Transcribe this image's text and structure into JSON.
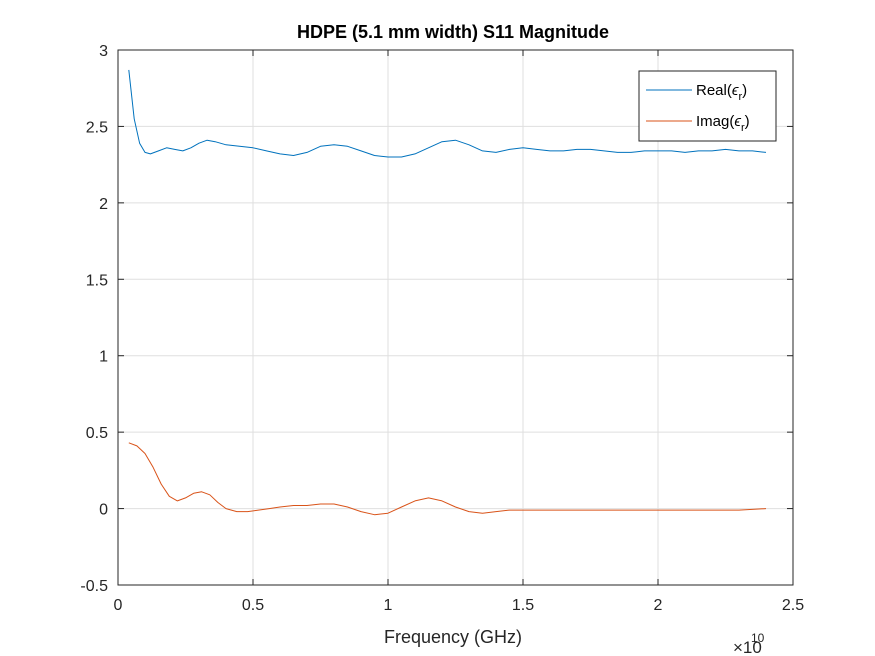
{
  "chart_data": {
    "type": "line",
    "title": "HDPE (5.1 mm width) S11 Magnitude",
    "xlabel": "Frequency (GHz)",
    "ylabel": "",
    "xlim": [
      0,
      2.5
    ],
    "ylim": [
      -0.5,
      3
    ],
    "x_exponent": {
      "base": "×10",
      "power": "10"
    },
    "xticks": [
      0,
      0.5,
      1,
      1.5,
      2,
      2.5
    ],
    "xtick_labels": [
      "0",
      "0.5",
      "1",
      "1.5",
      "2",
      "2.5"
    ],
    "yticks": [
      -0.5,
      0,
      0.5,
      1,
      1.5,
      2,
      2.5,
      3
    ],
    "ytick_labels": [
      "-0.5",
      "0",
      "0.5",
      "1",
      "1.5",
      "2",
      "2.5",
      "3"
    ],
    "grid": true,
    "legend_position": "top-right",
    "series": [
      {
        "name": "Real(ϵr)",
        "label_main": "Real(",
        "label_symbol": "ϵ",
        "label_sub": "r",
        "label_close": ")",
        "color": "#0072BD",
        "x": [
          0.04,
          0.06,
          0.08,
          0.1,
          0.12,
          0.15,
          0.18,
          0.21,
          0.24,
          0.27,
          0.3,
          0.33,
          0.36,
          0.4,
          0.45,
          0.5,
          0.55,
          0.6,
          0.65,
          0.7,
          0.75,
          0.8,
          0.85,
          0.9,
          0.95,
          1.0,
          1.05,
          1.1,
          1.15,
          1.2,
          1.25,
          1.3,
          1.35,
          1.4,
          1.45,
          1.5,
          1.55,
          1.6,
          1.65,
          1.7,
          1.75,
          1.8,
          1.85,
          1.9,
          1.95,
          2.0,
          2.05,
          2.1,
          2.15,
          2.2,
          2.25,
          2.3,
          2.35,
          2.4
        ],
        "y": [
          2.87,
          2.55,
          2.39,
          2.33,
          2.32,
          2.34,
          2.36,
          2.35,
          2.34,
          2.36,
          2.39,
          2.41,
          2.4,
          2.38,
          2.37,
          2.36,
          2.34,
          2.32,
          2.31,
          2.33,
          2.37,
          2.38,
          2.37,
          2.34,
          2.31,
          2.3,
          2.3,
          2.32,
          2.36,
          2.4,
          2.41,
          2.38,
          2.34,
          2.33,
          2.35,
          2.36,
          2.35,
          2.34,
          2.34,
          2.35,
          2.35,
          2.34,
          2.33,
          2.33,
          2.34,
          2.34,
          2.34,
          2.33,
          2.34,
          2.34,
          2.35,
          2.34,
          2.34,
          2.33
        ]
      },
      {
        "name": "Imag(ϵr)",
        "label_main": "Imag(",
        "label_symbol": "ϵ",
        "label_sub": "r",
        "label_close": ")",
        "color": "#D95319",
        "x": [
          0.04,
          0.07,
          0.1,
          0.13,
          0.16,
          0.19,
          0.22,
          0.25,
          0.28,
          0.31,
          0.34,
          0.37,
          0.4,
          0.44,
          0.48,
          0.52,
          0.56,
          0.6,
          0.65,
          0.7,
          0.75,
          0.8,
          0.85,
          0.9,
          0.95,
          1.0,
          1.05,
          1.1,
          1.15,
          1.2,
          1.25,
          1.3,
          1.35,
          1.4,
          1.45,
          1.5,
          1.6,
          1.7,
          1.8,
          1.9,
          2.0,
          2.1,
          2.2,
          2.3,
          2.4
        ],
        "y": [
          0.43,
          0.41,
          0.36,
          0.27,
          0.16,
          0.08,
          0.05,
          0.07,
          0.1,
          0.11,
          0.09,
          0.04,
          0.0,
          -0.02,
          -0.02,
          -0.01,
          0.0,
          0.01,
          0.02,
          0.02,
          0.03,
          0.03,
          0.01,
          -0.02,
          -0.04,
          -0.03,
          0.01,
          0.05,
          0.07,
          0.05,
          0.01,
          -0.02,
          -0.03,
          -0.02,
          -0.01,
          -0.01,
          -0.01,
          -0.01,
          -0.01,
          -0.01,
          -0.01,
          -0.01,
          -0.01,
          -0.01,
          0.0
        ]
      }
    ]
  }
}
